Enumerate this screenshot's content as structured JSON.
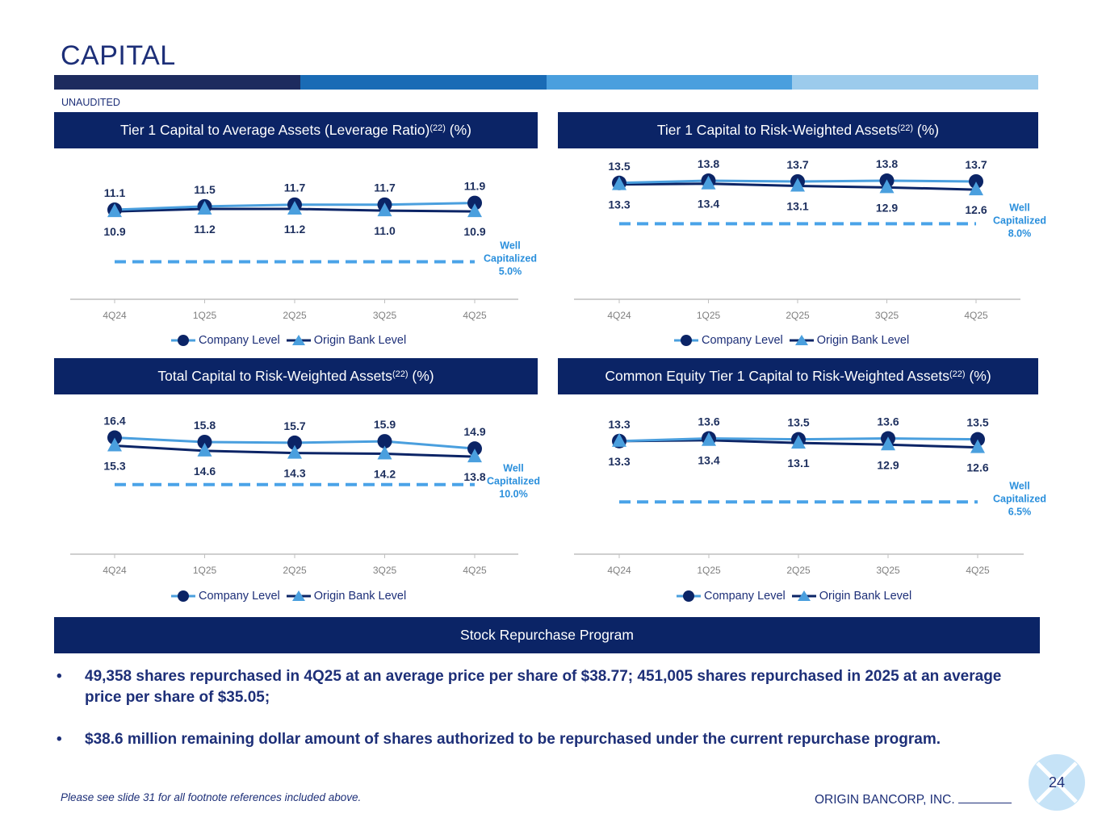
{
  "title": "CAPITAL",
  "unaudited": "UNAUDITED",
  "colors": {
    "navy": "#0b2466",
    "light_blue": "#4a9fde",
    "dashed_blue": "#4aa3e8",
    "strip": [
      "#1d2b5e",
      "#1a6bb5",
      "#4a9fde",
      "#9ccbec"
    ]
  },
  "legend": {
    "company": "Company Level",
    "bank": "Origin Bank Level"
  },
  "chart_data": [
    {
      "type": "line",
      "title": "Tier 1 Capital to Average Assets (Leverage Ratio)",
      "superscript": "(22)",
      "unit_suffix": " (%)",
      "categories": [
        "4Q24",
        "1Q25",
        "2Q25",
        "3Q25",
        "4Q25"
      ],
      "series": [
        {
          "name": "Company Level",
          "values": [
            "11.1",
            "11.5",
            "11.7",
            "11.7",
            "11.9"
          ]
        },
        {
          "name": "Origin Bank Level",
          "values": [
            "10.9",
            "11.2",
            "11.2",
            "11.0",
            "10.9"
          ]
        }
      ],
      "threshold": {
        "value": 5.0,
        "label_lines": [
          "Well",
          "Capitalized",
          "5.0%"
        ]
      },
      "ylim": [
        4,
        13
      ]
    },
    {
      "type": "line",
      "title": "Tier 1 Capital to Risk-Weighted Assets",
      "superscript": "(22)",
      "unit_suffix": " (%)",
      "categories": [
        "4Q24",
        "1Q25",
        "2Q25",
        "3Q25",
        "4Q25"
      ],
      "series": [
        {
          "name": "Company Level",
          "values": [
            "13.5",
            "13.8",
            "13.7",
            "13.8",
            "13.7"
          ]
        },
        {
          "name": "Origin Bank Level",
          "values": [
            "13.3",
            "13.4",
            "13.1",
            "12.9",
            "12.6"
          ]
        }
      ],
      "threshold": {
        "value": 8.0,
        "label_lines": [
          "Well",
          "Capitalized",
          "8.0%"
        ]
      },
      "ylim": [
        5,
        15
      ]
    },
    {
      "type": "line",
      "title": "Total Capital to Risk-Weighted Assets",
      "superscript": "(22)",
      "unit_suffix": " (%)",
      "categories": [
        "4Q24",
        "1Q25",
        "2Q25",
        "3Q25",
        "4Q25"
      ],
      "series": [
        {
          "name": "Company Level",
          "values": [
            "16.4",
            "15.8",
            "15.7",
            "15.9",
            "14.9"
          ]
        },
        {
          "name": "Origin Bank Level",
          "values": [
            "15.3",
            "14.6",
            "14.3",
            "14.2",
            "13.8"
          ]
        }
      ],
      "threshold": {
        "value": 10.0,
        "label_lines": [
          "Well",
          "Capitalized",
          "10.0%"
        ]
      },
      "ylim": [
        7,
        18
      ]
    },
    {
      "type": "line",
      "title": "Common Equity Tier 1 Capital to Risk-Weighted Assets",
      "superscript": "(22)",
      "unit_suffix": " (%)",
      "categories": [
        "4Q24",
        "1Q25",
        "2Q25",
        "3Q25",
        "4Q25"
      ],
      "series": [
        {
          "name": "Company Level",
          "values": [
            "13.3",
            "13.6",
            "13.5",
            "13.6",
            "13.5"
          ]
        },
        {
          "name": "Origin Bank Level",
          "values": [
            "13.3",
            "13.4",
            "13.1",
            "12.9",
            "12.6"
          ]
        }
      ],
      "threshold": {
        "value": 6.5,
        "label_lines": [
          "Well",
          "Capitalized",
          "6.5%"
        ]
      },
      "ylim": [
        4,
        15
      ]
    }
  ],
  "stock": {
    "heading": "Stock Repurchase Program",
    "bullet_char": "•",
    "bullets": [
      "49,358 shares repurchased in 4Q25 at an average price per share of $38.77; 451,005 shares repurchased in 2025 at an average price per share of $35.05;",
      "$38.6 million remaining dollar amount of shares authorized to be repurchased under the current repurchase program."
    ]
  },
  "footnote": "Please see slide 31 for all footnote references included above.",
  "company_name": "ORIGIN BANCORP, INC.",
  "page_number": "24"
}
